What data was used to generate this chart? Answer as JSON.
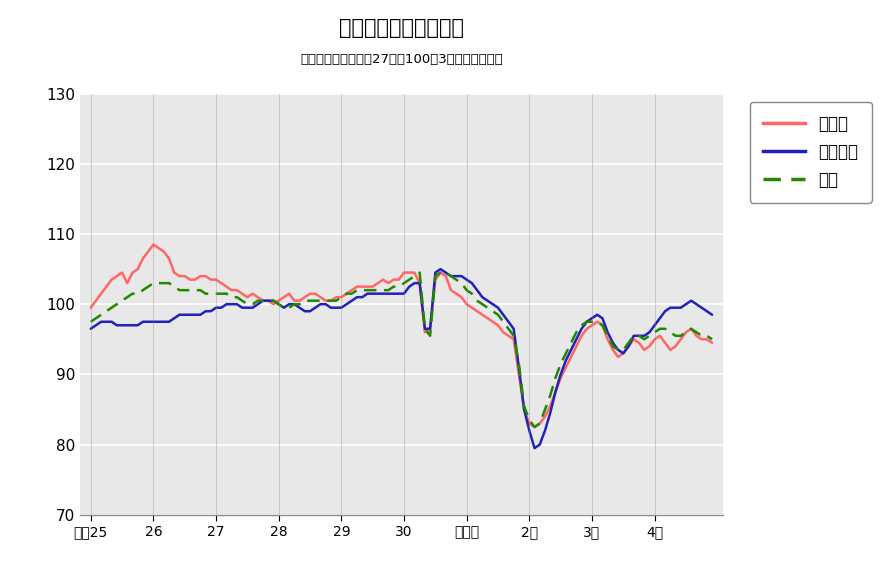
{
  "title": "鉱工業生産指数の推移",
  "subtitle": "（季節調整済、平成27年＝100、3ヶ月移動平均）",
  "ylim": [
    70,
    130
  ],
  "yticks": [
    70,
    80,
    90,
    100,
    110,
    120,
    130
  ],
  "plot_bg_color": "#e8e8e8",
  "fig_bg_color": "#ffffff",
  "grid_color": "#ffffff",
  "legend_labels": [
    "鳥取県",
    "中国地方",
    "全国"
  ],
  "x_tick_labels": [
    "平成25",
    "26",
    "27",
    "28",
    "29",
    "30",
    "令和元",
    "2年",
    "3年",
    "4年"
  ],
  "x_tick_positions": [
    0,
    12,
    24,
    36,
    48,
    60,
    72,
    84,
    96,
    108
  ],
  "n_points": 120,
  "tottori": [
    99.5,
    100.5,
    101.5,
    102.5,
    103.5,
    104.0,
    104.5,
    103.0,
    104.5,
    105.0,
    106.5,
    107.5,
    108.5,
    108.0,
    107.5,
    106.5,
    104.5,
    104.0,
    104.0,
    103.5,
    103.5,
    104.0,
    104.0,
    103.5,
    103.5,
    103.0,
    102.5,
    102.0,
    102.0,
    101.5,
    101.0,
    101.5,
    101.0,
    100.5,
    100.5,
    100.0,
    100.5,
    101.0,
    101.5,
    100.5,
    100.5,
    101.0,
    101.5,
    101.5,
    101.0,
    100.5,
    100.5,
    101.0,
    101.0,
    101.5,
    102.0,
    102.5,
    102.5,
    102.5,
    102.5,
    103.0,
    103.5,
    103.0,
    103.5,
    103.5,
    104.5,
    104.5,
    104.5,
    103.0,
    96.0,
    96.5,
    103.5,
    104.5,
    104.0,
    102.0,
    101.5,
    101.0,
    100.0,
    99.5,
    99.0,
    98.5,
    98.0,
    97.5,
    97.0,
    96.0,
    95.5,
    95.0,
    90.0,
    85.0,
    83.0,
    82.5,
    83.0,
    84.0,
    85.5,
    87.5,
    89.5,
    91.0,
    92.5,
    94.0,
    95.5,
    96.5,
    97.0,
    97.5,
    97.0,
    95.0,
    93.5,
    92.5,
    93.0,
    94.0,
    95.0,
    94.5,
    93.5,
    94.0,
    95.0,
    95.5,
    94.5,
    93.5,
    94.0,
    95.0,
    96.0,
    96.5,
    95.5,
    95.0,
    95.0,
    94.5
  ],
  "chugoku": [
    96.5,
    97.0,
    97.5,
    97.5,
    97.5,
    97.0,
    97.0,
    97.0,
    97.0,
    97.0,
    97.5,
    97.5,
    97.5,
    97.5,
    97.5,
    97.5,
    98.0,
    98.5,
    98.5,
    98.5,
    98.5,
    98.5,
    99.0,
    99.0,
    99.5,
    99.5,
    100.0,
    100.0,
    100.0,
    99.5,
    99.5,
    99.5,
    100.0,
    100.5,
    100.5,
    100.5,
    100.0,
    99.5,
    100.0,
    100.0,
    99.5,
    99.0,
    99.0,
    99.5,
    100.0,
    100.0,
    99.5,
    99.5,
    99.5,
    100.0,
    100.5,
    101.0,
    101.0,
    101.5,
    101.5,
    101.5,
    101.5,
    101.5,
    101.5,
    101.5,
    101.5,
    102.5,
    103.0,
    103.0,
    96.5,
    96.5,
    104.5,
    105.0,
    104.5,
    104.0,
    104.0,
    104.0,
    103.5,
    103.0,
    102.0,
    101.0,
    100.5,
    100.0,
    99.5,
    98.5,
    97.5,
    96.5,
    91.0,
    85.0,
    82.0,
    79.5,
    80.0,
    82.0,
    84.5,
    87.5,
    90.0,
    92.0,
    93.5,
    95.0,
    96.5,
    97.5,
    98.0,
    98.5,
    98.0,
    96.0,
    94.5,
    93.5,
    93.0,
    94.0,
    95.5,
    95.5,
    95.5,
    96.0,
    97.0,
    98.0,
    99.0,
    99.5,
    99.5,
    99.5,
    100.0,
    100.5,
    100.0,
    99.5,
    99.0,
    98.5
  ],
  "zenkoku": [
    97.5,
    98.0,
    98.5,
    99.0,
    99.5,
    100.0,
    100.5,
    101.0,
    101.5,
    101.5,
    102.0,
    102.5,
    103.0,
    103.0,
    103.0,
    103.0,
    102.5,
    102.0,
    102.0,
    102.0,
    102.0,
    102.0,
    101.5,
    101.5,
    101.5,
    101.5,
    101.5,
    101.0,
    101.0,
    100.5,
    100.0,
    100.0,
    100.5,
    100.5,
    100.5,
    100.5,
    100.0,
    99.5,
    99.5,
    100.0,
    100.0,
    100.5,
    100.5,
    100.5,
    100.5,
    100.5,
    100.5,
    100.5,
    101.0,
    101.5,
    101.5,
    102.0,
    102.0,
    102.0,
    102.0,
    102.0,
    102.0,
    102.0,
    102.5,
    102.5,
    103.0,
    103.5,
    104.0,
    104.5,
    96.5,
    95.5,
    104.0,
    104.5,
    104.5,
    104.0,
    103.5,
    103.0,
    102.0,
    101.5,
    100.5,
    100.0,
    99.5,
    99.0,
    98.5,
    97.5,
    96.5,
    95.5,
    91.5,
    85.5,
    83.5,
    82.5,
    83.0,
    85.0,
    87.0,
    89.5,
    91.5,
    93.0,
    94.5,
    96.0,
    97.0,
    97.5,
    97.5,
    97.5,
    97.0,
    95.5,
    94.0,
    93.5,
    93.5,
    94.5,
    95.5,
    95.5,
    95.0,
    95.5,
    96.0,
    96.5,
    96.5,
    96.0,
    95.5,
    95.5,
    96.0,
    96.5,
    96.0,
    95.5,
    95.5,
    95.0
  ]
}
